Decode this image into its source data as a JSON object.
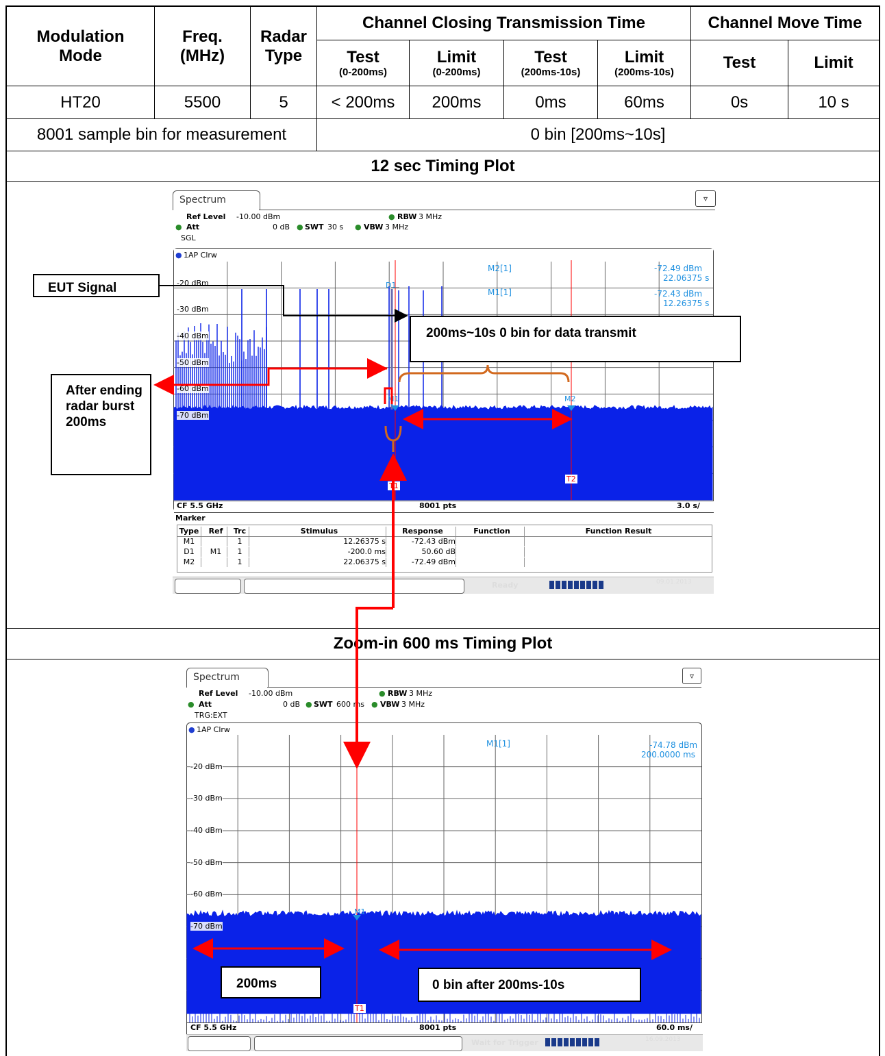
{
  "table": {
    "headers": {
      "modulation_mode": "Modulation Mode",
      "freq": "Freq. (MHz)",
      "radar_type": "Radar Type",
      "channel_closing": "Channel Closing Transmission Time",
      "channel_move": "Channel Move Time",
      "test": "Test",
      "limit": "Limit",
      "range_short": "(0-200ms)",
      "range_long": "(200ms-10s)"
    },
    "row": {
      "mode": "HT20",
      "freq": "5500",
      "radar_type": "5",
      "test_short": "< 200ms",
      "limit_short": "200ms",
      "test_long": "0ms",
      "limit_long": "60ms",
      "move_test": "0s",
      "move_limit": "10 s"
    },
    "sample_label": "8001 sample bin for measurement",
    "sample_result": "0 bin [200ms~10s]",
    "plot1_title": "12 sec Timing Plot",
    "plot2_title": "Zoom-in 600 ms Timing Plot"
  },
  "plot1": {
    "tab": "Spectrum",
    "ref_level_label": "Ref Level",
    "ref_level_value": "-10.00 dBm",
    "att_label": "Att",
    "att_value": "0 dB",
    "swt_label": "SWT",
    "swt_value": "30 s",
    "rbw_label": "RBW",
    "rbw_value": "3 MHz",
    "vbw_label": "VBW",
    "vbw_value": "3 MHz",
    "mode": "SGL",
    "trace": "1AP Clrw",
    "y_labels": [
      "-20 dBm",
      "-30 dBm",
      "-40 dBm",
      "-50 dBm",
      "-60 dBm",
      "-70 dBm"
    ],
    "m2_label": "M2[1]",
    "m2_level": "-72.49 dBm",
    "m2_time": "22.06375 s",
    "m1_label": "M1[1]",
    "m1_level": "-72.43 dBm",
    "m1_time": "12.26375 s",
    "cf": "CF 5.5 GHz",
    "pts": "8001 pts",
    "div": "3.0 s/",
    "marker_title": "Marker",
    "marker_headers": [
      "Type",
      "Ref",
      "Trc",
      "Stimulus",
      "Response",
      "Function",
      "Function Result"
    ],
    "marker_rows": [
      [
        "M1",
        "",
        "1",
        "12.26375 s",
        "-72.43 dBm",
        "",
        ""
      ],
      [
        "D1",
        "M1",
        "1",
        "-200.0 ms",
        "50.60 dB",
        "",
        ""
      ],
      [
        "M2",
        "",
        "1",
        "22.06375 s",
        "-72.49 dBm",
        "",
        ""
      ]
    ],
    "status": "Ready",
    "date": "09.01.2013",
    "flag_m1": "M1",
    "flag_d1": "D1",
    "flag_m2": "M2",
    "flag_t1": "T1",
    "flag_t2": "T2",
    "callout_eut": "EUT Signal",
    "callout_zero_bin": "200ms~10s 0 bin for data transmit",
    "callout_after": "After ending radar burst 200ms"
  },
  "plot2": {
    "tab": "Spectrum",
    "ref_level_label": "Ref Level",
    "ref_level_value": "-10.00 dBm",
    "att_label": "Att",
    "att_value": "0 dB",
    "swt_label": "SWT",
    "swt_value": "600 ms",
    "rbw_label": "RBW",
    "rbw_value": "3 MHz",
    "vbw_label": "VBW",
    "vbw_value": "3 MHz",
    "mode": "TRG:EXT",
    "trace": "1AP Clrw",
    "y_labels": [
      "-20 dBm",
      "-30 dBm",
      "-40 dBm",
      "-50 dBm",
      "-60 dBm",
      "-70 dBm"
    ],
    "m1_label": "M1[1]",
    "m1_level": "-74.78 dBm",
    "m1_time": "200.0000 ms",
    "cf": "CF 5.5 GHz",
    "pts": "8001 pts",
    "div": "60.0 ms/",
    "status": "Wait for Trigger",
    "date": "16.09.2013",
    "flag_m1": "M1",
    "flag_t1": "T1",
    "callout_200": "200ms",
    "callout_zero": "0 bin after 200ms-10s"
  },
  "colors": {
    "trace_blue": "#0a22e8",
    "marker_cyan": "#1e90e0",
    "annotation_red": "#ff0000",
    "brace_orange": "#d2691e"
  }
}
